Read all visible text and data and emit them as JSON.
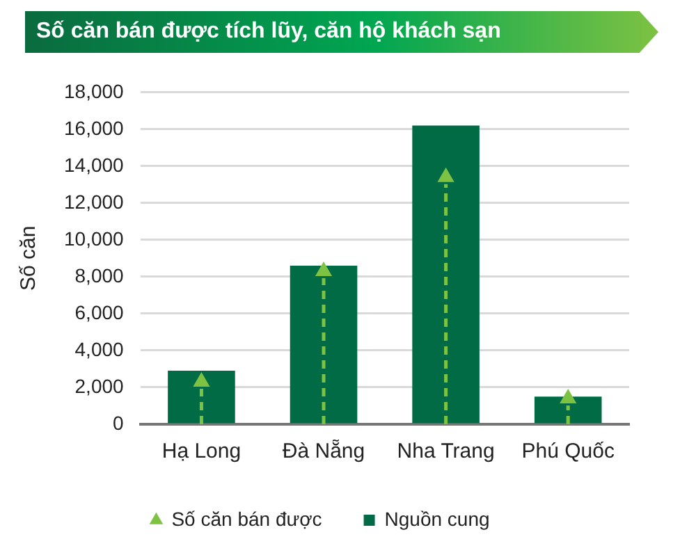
{
  "chart_data": {
    "type": "bar",
    "title": "Số căn bán được tích lũy, căn hộ khách sạn",
    "ylabel": "Số căn",
    "categories": [
      "Hạ Long",
      "Đà Nẵng",
      "Nha Trang",
      "Phú Quốc"
    ],
    "series": [
      {
        "name": "Nguồn cung",
        "color": "#006b45",
        "values": [
          2900,
          8600,
          16200,
          1500
        ]
      },
      {
        "name": "Số căn bán được",
        "type": "lollipop",
        "color": "#7dc242",
        "marker": "triangle",
        "line_style": "dashed",
        "values": [
          2300,
          8300,
          13400,
          1400
        ]
      }
    ],
    "ylim": [
      0,
      18000
    ],
    "yticks": [
      {
        "value": 0,
        "label": "0"
      },
      {
        "value": 2000,
        "label": "2,000"
      },
      {
        "value": 4000,
        "label": "4,000"
      },
      {
        "value": 6000,
        "label": "6,000"
      },
      {
        "value": 8000,
        "label": "8,000"
      },
      {
        "value": 10000,
        "label": "10,000"
      },
      {
        "value": 12000,
        "label": "12,000"
      },
      {
        "value": 14000,
        "label": "14,000"
      },
      {
        "value": 16000,
        "label": "16,000"
      },
      {
        "value": 18000,
        "label": "18,000"
      }
    ],
    "grid": "y",
    "legend": "bottom"
  }
}
